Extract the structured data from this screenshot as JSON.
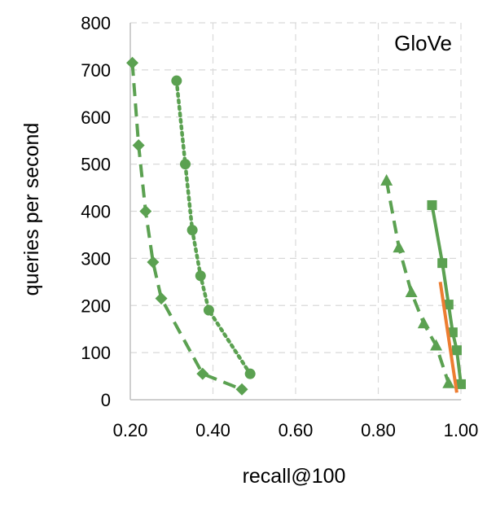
{
  "chart_data": {
    "type": "line",
    "title": "GloVe",
    "xlabel": "recall@100",
    "ylabel": "queries per second",
    "xlim": [
      0.2,
      1.0
    ],
    "ylim": [
      0,
      800
    ],
    "grid": true,
    "x_ticks": [
      "0.20",
      "0.40",
      "0.60",
      "0.80",
      "1.00"
    ],
    "y_ticks": [
      "0",
      "100",
      "200",
      "300",
      "400",
      "500",
      "600",
      "700",
      "800"
    ],
    "colors": {
      "green": "#5ba151",
      "orange": "#ed7d31"
    },
    "series": [
      {
        "color": "#5ba151",
        "marker": "diamond",
        "dash": "dashed",
        "x": [
          0.205,
          0.22,
          0.237,
          0.255,
          0.275,
          0.375,
          0.47
        ],
        "y": [
          715,
          540,
          400,
          292,
          215,
          55,
          22
        ]
      },
      {
        "color": "#5ba151",
        "marker": "circle",
        "dash": "dotted",
        "x": [
          0.312,
          0.333,
          0.35,
          0.37,
          0.39,
          0.49
        ],
        "y": [
          677,
          500,
          360,
          263,
          190,
          55
        ]
      },
      {
        "color": "#5ba151",
        "marker": "triangle",
        "dash": "dashed",
        "x": [
          0.82,
          0.85,
          0.88,
          0.91,
          0.94,
          0.97
        ],
        "y": [
          465,
          323,
          228,
          162,
          115,
          35
        ]
      },
      {
        "color": "#5ba151",
        "marker": "square",
        "dash": "solid",
        "x": [
          0.93,
          0.955,
          0.97,
          0.98,
          0.99,
          1.0
        ],
        "y": [
          413,
          290,
          202,
          143,
          105,
          33
        ]
      },
      {
        "color": "#ed7d31",
        "marker": "none",
        "dash": "solid",
        "x": [
          0.95,
          0.99
        ],
        "y": [
          250,
          15
        ]
      }
    ]
  }
}
